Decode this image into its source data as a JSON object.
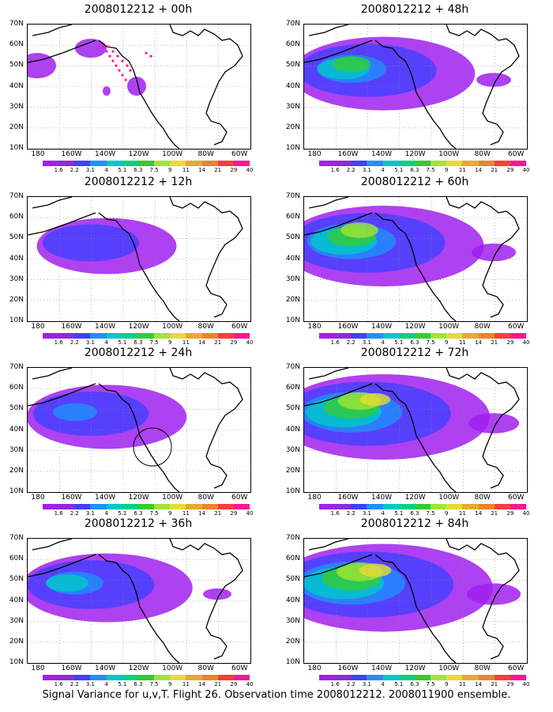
{
  "panels": [
    {
      "title": "2008012212 + 00h",
      "intensity": 0.05
    },
    {
      "title": "2008012212 + 48h",
      "intensity": 0.55
    },
    {
      "title": "2008012212 + 12h",
      "intensity": 0.18
    },
    {
      "title": "2008012212 + 60h",
      "intensity": 0.7
    },
    {
      "title": "2008012212 + 24h",
      "intensity": 0.35
    },
    {
      "title": "2008012212 + 72h",
      "intensity": 0.8
    },
    {
      "title": "2008012212 + 36h",
      "intensity": 0.45
    },
    {
      "title": "2008012212 + 84h",
      "intensity": 0.85
    }
  ],
  "lat_labels": [
    "70N",
    "60N",
    "50N",
    "40N",
    "30N",
    "20N",
    "10N"
  ],
  "lon_labels": [
    "180",
    "160W",
    "140W",
    "120W",
    "100W",
    "80W",
    "60W"
  ],
  "colorbar": {
    "labels": [
      "1.6",
      "2.2",
      "3.1",
      "4",
      "5.1",
      "6.3",
      "7.5",
      "9",
      "11",
      "14",
      "21",
      "29",
      "40"
    ],
    "colors": [
      "#ffffff",
      "#a020f0",
      "#8c2cdc",
      "#4040ff",
      "#1e90ff",
      "#00c8c8",
      "#00d282",
      "#32cd32",
      "#a0e632",
      "#e6dc32",
      "#e6aa2d",
      "#f08228",
      "#fa3c3c",
      "#ff1493"
    ]
  },
  "caption": "Signal Variance for u,v,T. Flight 26. Observation time 2008012212. 2008011900 ensemble."
}
